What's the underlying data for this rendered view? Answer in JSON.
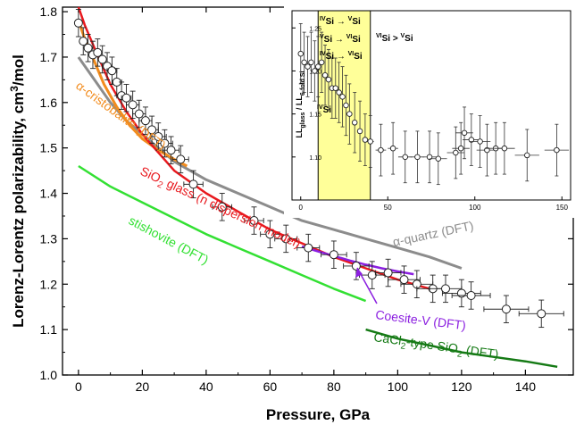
{
  "chart_data": [
    {
      "type": "scatter",
      "title": "",
      "xlabel": "Pressure, GPa",
      "ylabel": "Lorenz-Lorentz polarizability, cm",
      "ylabel_sup": "3",
      "ylabel_tail": "/mol",
      "xlim": [
        -5,
        155
      ],
      "ylim": [
        1.0,
        1.81
      ],
      "xticks": [
        "0",
        "20",
        "40",
        "60",
        "80",
        "100",
        "120",
        "140"
      ],
      "yticks": [
        "1.0",
        "1.1",
        "1.2",
        "1.3",
        "1.4",
        "1.5",
        "1.6",
        "1.7",
        "1.8"
      ],
      "grid": false,
      "colors": {
        "quartz": "#8c8c8c",
        "cristobalite": "#f28c1e",
        "glass_model": "#e8191e",
        "coesite": "#8b1fe0",
        "stishovite": "#33e033",
        "cacl2": "#157a15"
      },
      "series_labels": {
        "quartz_prefix": "α-quartz",
        "quartz_suffix": " (DFT)",
        "cristobalite_prefix": "α-cristobalite",
        "cristobalite_suffix": " (DFT)",
        "glass_a": "SiO",
        "glass_sub": "2",
        "glass_b": " glass (n dispersion model)",
        "coesite": "Coesite-V (DFT)",
        "stishovite": "stishovite (DFT)",
        "cacl2_a": "CaCl",
        "cacl2_sub": "2",
        "cacl2_b": "-type SiO",
        "cacl2_sub2": "2",
        "cacl2_c": " (DFT)"
      },
      "curves": {
        "quartz": [
          [
            0,
            1.7
          ],
          [
            5,
            1.65
          ],
          [
            10,
            1.6
          ],
          [
            15,
            1.56
          ],
          [
            20,
            1.53
          ],
          [
            30,
            1.47
          ],
          [
            40,
            1.43
          ],
          [
            50,
            1.4
          ],
          [
            60,
            1.37
          ],
          [
            70,
            1.34
          ],
          [
            80,
            1.32
          ],
          [
            90,
            1.3
          ],
          [
            100,
            1.28
          ],
          [
            110,
            1.26
          ],
          [
            120,
            1.235
          ]
        ],
        "cristobalite": [
          [
            0,
            1.78
          ],
          [
            2,
            1.74
          ],
          [
            5,
            1.69
          ],
          [
            8,
            1.64
          ],
          [
            12,
            1.59
          ],
          [
            16,
            1.55
          ],
          [
            20,
            1.52
          ],
          [
            25,
            1.495
          ],
          [
            30,
            1.475
          ],
          [
            34,
            1.46
          ]
        ],
        "glass_model": [
          [
            0,
            1.81
          ],
          [
            2,
            1.77
          ],
          [
            5,
            1.72
          ],
          [
            10,
            1.64
          ],
          [
            15,
            1.58
          ],
          [
            20,
            1.53
          ],
          [
            25,
            1.49
          ],
          [
            30,
            1.45
          ],
          [
            40,
            1.4
          ],
          [
            50,
            1.36
          ],
          [
            60,
            1.32
          ],
          [
            70,
            1.29
          ],
          [
            80,
            1.26
          ],
          [
            90,
            1.235
          ],
          [
            100,
            1.21
          ],
          [
            110,
            1.19
          ],
          [
            112,
            1.186
          ]
        ],
        "coesite": [
          [
            70,
            1.283
          ],
          [
            75,
            1.272
          ],
          [
            80,
            1.262
          ],
          [
            85,
            1.252
          ],
          [
            90,
            1.243
          ],
          [
            95,
            1.235
          ],
          [
            100,
            1.228
          ],
          [
            105,
            1.222
          ]
        ],
        "stishovite": [
          [
            0,
            1.46
          ],
          [
            10,
            1.415
          ],
          [
            20,
            1.38
          ],
          [
            30,
            1.345
          ],
          [
            40,
            1.31
          ],
          [
            50,
            1.28
          ],
          [
            60,
            1.25
          ],
          [
            70,
            1.22
          ],
          [
            80,
            1.19
          ],
          [
            90,
            1.163
          ]
        ],
        "cacl2": [
          [
            90,
            1.1
          ],
          [
            100,
            1.08
          ],
          [
            110,
            1.065
          ],
          [
            120,
            1.05
          ],
          [
            130,
            1.04
          ],
          [
            140,
            1.03
          ],
          [
            150,
            1.018
          ]
        ]
      },
      "points": [
        {
          "x": 0.0,
          "y": 1.775,
          "xerr": 0.5,
          "yerr": 0.03
        },
        {
          "x": 1.5,
          "y": 1.735,
          "xerr": 1.0,
          "yerr": 0.03
        },
        {
          "x": 3.0,
          "y": 1.72,
          "xerr": 1.0,
          "yerr": 0.03
        },
        {
          "x": 4.5,
          "y": 1.705,
          "xerr": 1.0,
          "yerr": 0.03
        },
        {
          "x": 6.0,
          "y": 1.71,
          "xerr": 1.0,
          "yerr": 0.03
        },
        {
          "x": 7.5,
          "y": 1.695,
          "xerr": 1.0,
          "yerr": 0.03
        },
        {
          "x": 9.0,
          "y": 1.68,
          "xerr": 1.5,
          "yerr": 0.03
        },
        {
          "x": 10.5,
          "y": 1.67,
          "xerr": 1.5,
          "yerr": 0.03
        },
        {
          "x": 12.0,
          "y": 1.645,
          "xerr": 1.5,
          "yerr": 0.03
        },
        {
          "x": 13.5,
          "y": 1.615,
          "xerr": 1.5,
          "yerr": 0.03
        },
        {
          "x": 15.0,
          "y": 1.61,
          "xerr": 1.5,
          "yerr": 0.03
        },
        {
          "x": 17.0,
          "y": 1.595,
          "xerr": 2.0,
          "yerr": 0.03
        },
        {
          "x": 19.0,
          "y": 1.575,
          "xerr": 2.0,
          "yerr": 0.03
        },
        {
          "x": 21.0,
          "y": 1.56,
          "xerr": 2.0,
          "yerr": 0.03
        },
        {
          "x": 23.0,
          "y": 1.54,
          "xerr": 2.0,
          "yerr": 0.03
        },
        {
          "x": 25.0,
          "y": 1.525,
          "xerr": 2.5,
          "yerr": 0.03
        },
        {
          "x": 27.0,
          "y": 1.51,
          "xerr": 2.5,
          "yerr": 0.03
        },
        {
          "x": 29.0,
          "y": 1.495,
          "xerr": 2.5,
          "yerr": 0.03
        },
        {
          "x": 32.0,
          "y": 1.475,
          "xerr": 2.5,
          "yerr": 0.03
        },
        {
          "x": 36.0,
          "y": 1.42,
          "xerr": 3.0,
          "yerr": 0.03
        },
        {
          "x": 45.0,
          "y": 1.37,
          "xerr": 3.0,
          "yerr": 0.03
        },
        {
          "x": 55.0,
          "y": 1.34,
          "xerr": 3.0,
          "yerr": 0.03
        },
        {
          "x": 60.0,
          "y": 1.31,
          "xerr": 3.0,
          "yerr": 0.03
        },
        {
          "x": 65.0,
          "y": 1.3,
          "xerr": 3.5,
          "yerr": 0.03
        },
        {
          "x": 72.0,
          "y": 1.28,
          "xerr": 3.5,
          "yerr": 0.03
        },
        {
          "x": 80.0,
          "y": 1.265,
          "xerr": 4.0,
          "yerr": 0.03
        },
        {
          "x": 87.0,
          "y": 1.24,
          "xerr": 4.0,
          "yerr": 0.03
        },
        {
          "x": 92.0,
          "y": 1.22,
          "xerr": 4.0,
          "yerr": 0.03
        },
        {
          "x": 97.0,
          "y": 1.225,
          "xerr": 4.0,
          "yerr": 0.03
        },
        {
          "x": 102.0,
          "y": 1.21,
          "xerr": 5.0,
          "yerr": 0.03
        },
        {
          "x": 106.0,
          "y": 1.2,
          "xerr": 5.0,
          "yerr": 0.03
        },
        {
          "x": 111.0,
          "y": 1.19,
          "xerr": 5.0,
          "yerr": 0.03
        },
        {
          "x": 115.0,
          "y": 1.19,
          "xerr": 5.0,
          "yerr": 0.03
        },
        {
          "x": 120.0,
          "y": 1.18,
          "xerr": 6.0,
          "yerr": 0.03
        },
        {
          "x": 123.0,
          "y": 1.175,
          "xerr": 6.0,
          "yerr": 0.03
        },
        {
          "x": 134.0,
          "y": 1.145,
          "xerr": 7.0,
          "yerr": 0.03
        },
        {
          "x": 145.0,
          "y": 1.135,
          "xerr": 7.0,
          "yerr": 0.03
        }
      ]
    },
    {
      "type": "scatter",
      "title": "",
      "xlabel": "",
      "ylabel_a": "LL",
      "ylabel_sub_a": "glass",
      "ylabel_b": " / LL",
      "ylabel_sub_b": "6-fold Si",
      "xlim": [
        -5,
        155
      ],
      "ylim": [
        1.05,
        1.27
      ],
      "xticks": [
        "0",
        "50",
        "100",
        "150"
      ],
      "yticks": [
        "1.10",
        "1.15",
        "1.20",
        "1.25"
      ],
      "grid": false,
      "highlight": {
        "x0": 10,
        "x1": 40,
        "color": "#ffff99",
        "edge": "#000000"
      },
      "labels": {
        "ivsi_a": "IV",
        "ivsi_b": "Si",
        "arrow1_a": "IV",
        "arrow1_b": "Si → ",
        "arrow1_c": "V",
        "arrow1_d": "Si",
        "arrow2_a": "V",
        "arrow2_b": "Si → ",
        "arrow2_c": "VI",
        "arrow2_d": "Si",
        "arrow3_a": "IV",
        "arrow3_b": "Si → ",
        "arrow3_c": "VI",
        "arrow3_d": "Si",
        "right_a": "VI",
        "right_b": "Si > ",
        "right_c": "V",
        "right_d": "Si"
      },
      "points": [
        {
          "x": 0,
          "y": 1.22,
          "xerr": 1,
          "yerr": 0.035
        },
        {
          "x": 2,
          "y": 1.21,
          "xerr": 1,
          "yerr": 0.035
        },
        {
          "x": 4,
          "y": 1.205,
          "xerr": 1,
          "yerr": 0.035
        },
        {
          "x": 6,
          "y": 1.21,
          "xerr": 1,
          "yerr": 0.035
        },
        {
          "x": 8,
          "y": 1.2,
          "xerr": 1,
          "yerr": 0.035
        },
        {
          "x": 10,
          "y": 1.205,
          "xerr": 1,
          "yerr": 0.035
        },
        {
          "x": 12,
          "y": 1.21,
          "xerr": 1,
          "yerr": 0.035
        },
        {
          "x": 14,
          "y": 1.195,
          "xerr": 1,
          "yerr": 0.035
        },
        {
          "x": 16,
          "y": 1.19,
          "xerr": 1,
          "yerr": 0.035
        },
        {
          "x": 18,
          "y": 1.18,
          "xerr": 1,
          "yerr": 0.035
        },
        {
          "x": 20,
          "y": 1.18,
          "xerr": 1,
          "yerr": 0.035
        },
        {
          "x": 22,
          "y": 1.175,
          "xerr": 1,
          "yerr": 0.035
        },
        {
          "x": 24,
          "y": 1.17,
          "xerr": 1,
          "yerr": 0.035
        },
        {
          "x": 26,
          "y": 1.16,
          "xerr": 1,
          "yerr": 0.035
        },
        {
          "x": 28,
          "y": 1.15,
          "xerr": 1,
          "yerr": 0.035
        },
        {
          "x": 31,
          "y": 1.14,
          "xerr": 1.5,
          "yerr": 0.035
        },
        {
          "x": 34,
          "y": 1.13,
          "xerr": 1.5,
          "yerr": 0.035
        },
        {
          "x": 37,
          "y": 1.12,
          "xerr": 1.5,
          "yerr": 0.03
        },
        {
          "x": 40,
          "y": 1.118,
          "xerr": 2,
          "yerr": 0.03
        },
        {
          "x": 46,
          "y": 1.108,
          "xerr": 3,
          "yerr": 0.03
        },
        {
          "x": 53,
          "y": 1.11,
          "xerr": 3,
          "yerr": 0.03
        },
        {
          "x": 60,
          "y": 1.1,
          "xerr": 4,
          "yerr": 0.03
        },
        {
          "x": 67,
          "y": 1.1,
          "xerr": 4,
          "yerr": 0.03
        },
        {
          "x": 74,
          "y": 1.1,
          "xerr": 4,
          "yerr": 0.03
        },
        {
          "x": 79,
          "y": 1.098,
          "xerr": 5,
          "yerr": 0.03
        },
        {
          "x": 89,
          "y": 1.105,
          "xerr": 5,
          "yerr": 0.03
        },
        {
          "x": 92,
          "y": 1.11,
          "xerr": 5,
          "yerr": 0.03
        },
        {
          "x": 94,
          "y": 1.128,
          "xerr": 5,
          "yerr": 0.03
        },
        {
          "x": 98,
          "y": 1.12,
          "xerr": 5,
          "yerr": 0.03
        },
        {
          "x": 103,
          "y": 1.118,
          "xerr": 6,
          "yerr": 0.03
        },
        {
          "x": 107,
          "y": 1.108,
          "xerr": 6,
          "yerr": 0.03
        },
        {
          "x": 112,
          "y": 1.11,
          "xerr": 6,
          "yerr": 0.03
        },
        {
          "x": 117,
          "y": 1.11,
          "xerr": 6,
          "yerr": 0.03
        },
        {
          "x": 130,
          "y": 1.102,
          "xerr": 7,
          "yerr": 0.03
        },
        {
          "x": 147,
          "y": 1.108,
          "xerr": 7,
          "yerr": 0.03
        }
      ]
    }
  ]
}
